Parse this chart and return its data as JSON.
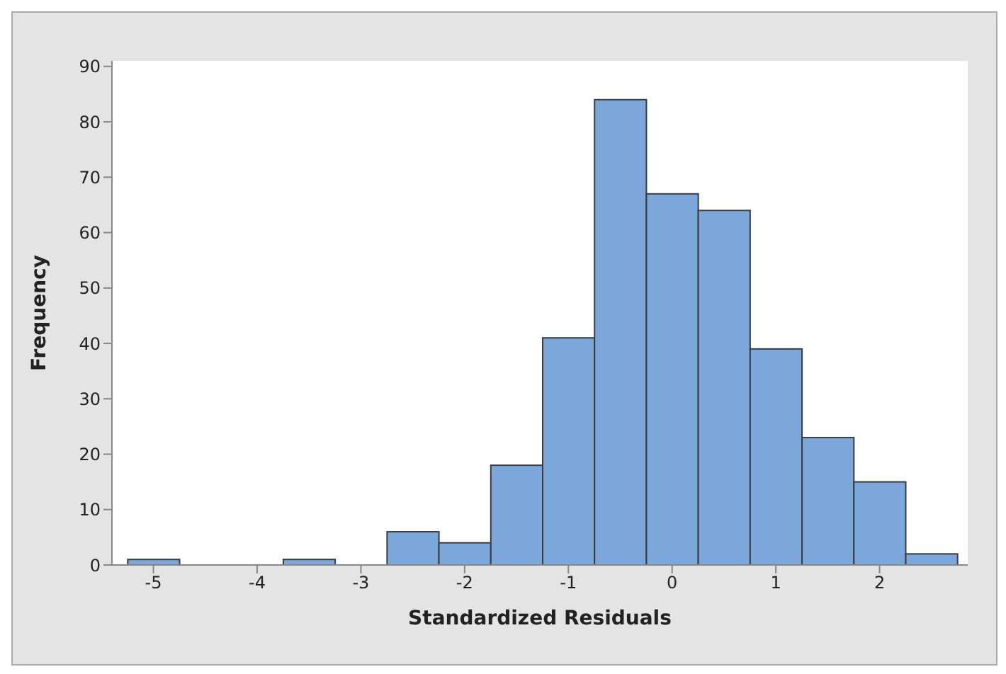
{
  "chart_data": {
    "type": "histogram",
    "xlabel": "Standardized Residuals",
    "ylabel": "Frequency",
    "bins": [
      -5.25,
      -4.75,
      -4.25,
      -3.75,
      -3.25,
      -2.75,
      -2.25,
      -1.75,
      -1.25,
      -0.75,
      -0.25,
      0.25,
      0.75,
      1.25,
      1.75,
      2.25,
      2.75
    ],
    "values": [
      1,
      0,
      0,
      1,
      0,
      6,
      4,
      18,
      41,
      84,
      67,
      64,
      39,
      23,
      15,
      2
    ],
    "color": "#7ba7da",
    "xlim": [
      -5.4,
      2.85
    ],
    "xticks": [
      -5,
      -4,
      -3,
      -2,
      -1,
      0,
      1,
      2
    ],
    "ylim": [
      0,
      91
    ],
    "yticks": [
      0,
      10,
      20,
      30,
      40,
      50,
      60,
      70,
      80,
      90
    ],
    "grid": false,
    "legend": false
  }
}
